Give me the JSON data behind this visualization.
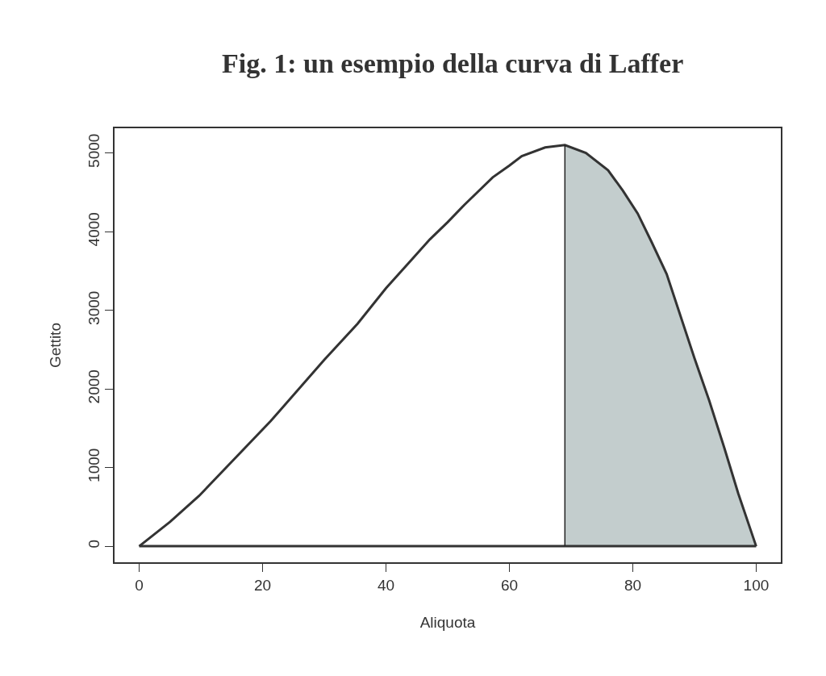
{
  "chart_data": {
    "type": "line",
    "title": "Fig. 1: un esempio della curva di Laffer",
    "xlabel": "Aliquota",
    "ylabel": "Gettito",
    "xlim": [
      -4,
      104
    ],
    "xticks": [
      0,
      20,
      40,
      60,
      80,
      100
    ],
    "ylim": [
      -204,
      5314
    ],
    "yticks": [
      0,
      1000,
      2000,
      3000,
      4000,
      5000
    ],
    "ref_lines": [
      {
        "axis": "y",
        "value": 0,
        "color": "#333333"
      },
      {
        "axis": "x",
        "value": 69,
        "color": "#222222"
      }
    ],
    "series": [
      {
        "color": "#333333",
        "x": [
          0,
          5,
          9.7,
          21.3,
          30,
          35.4,
          40,
          47.1,
          50,
          52.7,
          57.3,
          60,
          62,
          65.8,
          69,
          72.4,
          76,
          78.4,
          80.8,
          83.1,
          85.5,
          90,
          92.4,
          94.8,
          97.1,
          100
        ],
        "values": [
          0,
          310,
          640,
          1590,
          2370,
          2830,
          3280,
          3900,
          4120,
          4340,
          4690,
          4840,
          4960,
          5070,
          5100,
          5000,
          4780,
          4520,
          4230,
          3860,
          3460,
          2390,
          1850,
          1260,
          670,
          0
        ]
      },
      {
        "type": "area",
        "color": "#c3cdcd",
        "x": [
          69,
          72.4,
          76,
          78.4,
          80.8,
          83.1,
          85.5,
          90,
          92.4,
          94.8,
          97.1,
          100
        ],
        "values": [
          5100,
          5000,
          4780,
          4520,
          4230,
          3860,
          3460,
          2390,
          1850,
          1260,
          670,
          0
        ]
      }
    ]
  }
}
